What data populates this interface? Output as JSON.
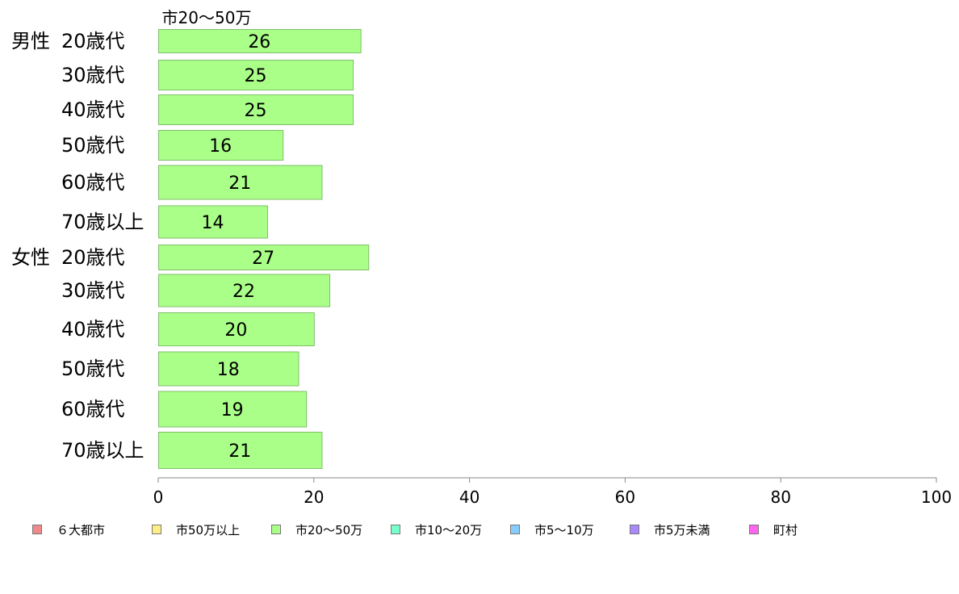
{
  "chart_data": {
    "type": "bar",
    "orientation": "horizontal",
    "series_title": "市20〜50万",
    "groups": [
      {
        "label": "男性",
        "categories": [
          "20歳代",
          "30歳代",
          "40歳代",
          "50歳代",
          "60歳代",
          "70歳以上"
        ],
        "values": [
          26,
          25,
          25,
          16,
          21,
          14
        ]
      },
      {
        "label": "女性",
        "categories": [
          "20歳代",
          "30歳代",
          "40歳代",
          "50歳代",
          "60歳代",
          "70歳以上"
        ],
        "values": [
          27,
          22,
          20,
          18,
          19,
          21
        ]
      }
    ],
    "series": [
      {
        "name": "市20〜50万",
        "color": "#aaff88"
      }
    ],
    "xlim": [
      0,
      100
    ],
    "xticks": [
      0,
      20,
      40,
      60,
      80,
      100
    ],
    "grid": false,
    "legend": {
      "placement": "bottom",
      "items": [
        {
          "label": "６大都市",
          "color": "#f08a8a"
        },
        {
          "label": "市50万以上",
          "color": "#ffee88"
        },
        {
          "label": "市20〜50万",
          "color": "#aaff88"
        },
        {
          "label": "市10〜20万",
          "color": "#77ffcc"
        },
        {
          "label": "市5〜10万",
          "color": "#88ccff"
        },
        {
          "label": "市5万未満",
          "color": "#aa88ff"
        },
        {
          "label": "町村",
          "color": "#ff66ee"
        }
      ]
    }
  }
}
